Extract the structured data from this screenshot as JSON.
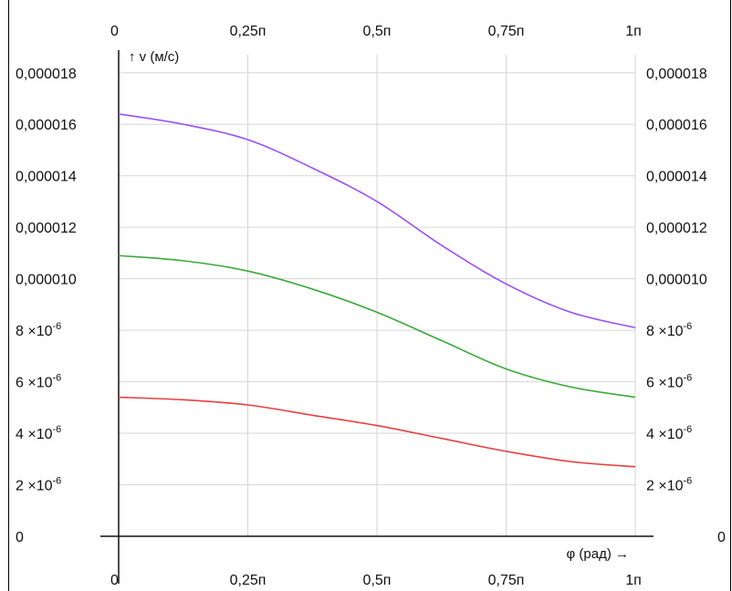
{
  "chart_data": {
    "type": "line",
    "xlabel": "φ (рад) →",
    "ylabel": "↑  v (м/с)",
    "x_ticks": [
      {
        "value": 0,
        "label": "0"
      },
      {
        "value": 0.25,
        "label": "0,25п"
      },
      {
        "value": 0.5,
        "label": "0,5п"
      },
      {
        "value": 0.75,
        "label": "0,75п"
      },
      {
        "value": 1,
        "label": "1п"
      }
    ],
    "y_ticks": [
      {
        "value": 1.8e-05,
        "label": "0,000018"
      },
      {
        "value": 1.6e-05,
        "label": "0,000016"
      },
      {
        "value": 1.4e-05,
        "label": "0,000014"
      },
      {
        "value": 1.2e-05,
        "label": "0,000012"
      },
      {
        "value": 1e-05,
        "label": "0,000010"
      },
      {
        "value": 8e-06,
        "label": "8 ×10",
        "exp": "-6"
      },
      {
        "value": 6e-06,
        "label": "6 ×10",
        "exp": "-6"
      },
      {
        "value": 4e-06,
        "label": "4 ×10",
        "exp": "-6"
      },
      {
        "value": 2e-06,
        "label": "2 ×10",
        "exp": "-6"
      },
      {
        "value": 0,
        "label": "0"
      }
    ],
    "xlim": [
      0,
      1
    ],
    "ylim": [
      0,
      1.87e-05
    ],
    "grid": true,
    "series": [
      {
        "color": "#9b4dff",
        "x": [
          0,
          0.125,
          0.25,
          0.375,
          0.5,
          0.625,
          0.75,
          0.875,
          1
        ],
        "values": [
          1.64e-05,
          1.6e-05,
          1.54e-05,
          1.43e-05,
          1.3e-05,
          1.13e-05,
          9.8e-06,
          8.7e-06,
          8.1e-06
        ]
      },
      {
        "color": "#3aaa3a",
        "x": [
          0,
          0.125,
          0.25,
          0.375,
          0.5,
          0.625,
          0.75,
          0.875,
          1
        ],
        "values": [
          1.09e-05,
          1.07e-05,
          1.03e-05,
          9.6e-06,
          8.7e-06,
          7.6e-06,
          6.5e-06,
          5.8e-06,
          5.4e-06
        ]
      },
      {
        "color": "#e84040",
        "x": [
          0,
          0.125,
          0.25,
          0.375,
          0.5,
          0.625,
          0.75,
          0.875,
          1
        ],
        "values": [
          5.4e-06,
          5.3e-06,
          5.1e-06,
          4.7e-06,
          4.3e-06,
          3.8e-06,
          3.3e-06,
          2.9e-06,
          2.7e-06
        ]
      }
    ]
  }
}
